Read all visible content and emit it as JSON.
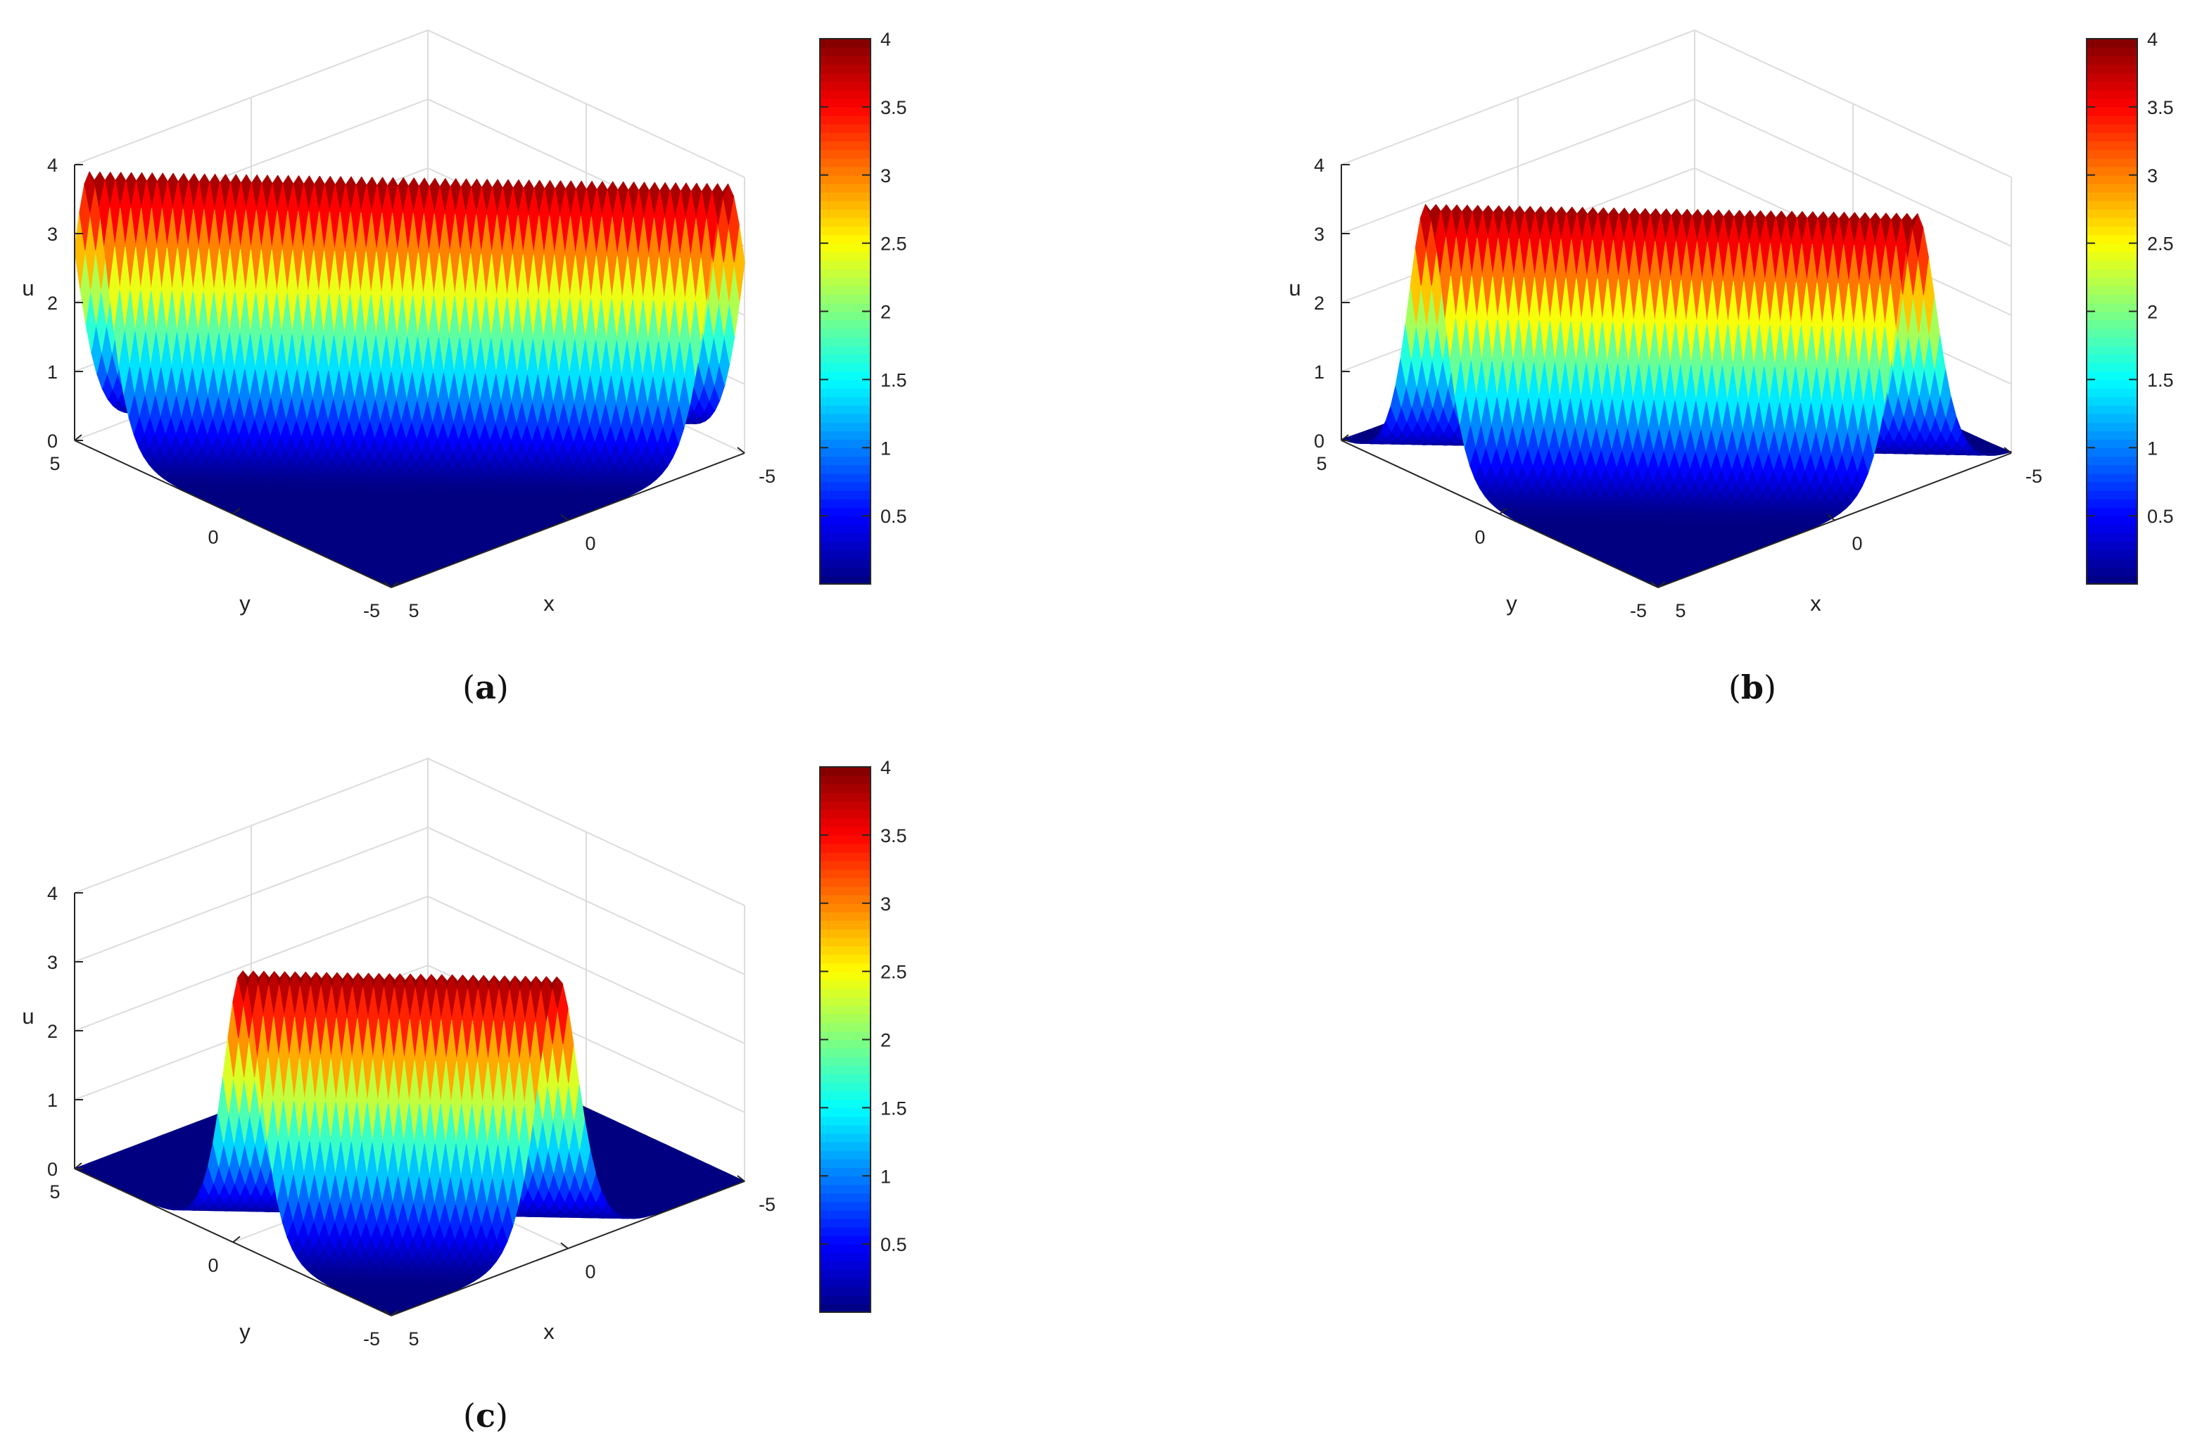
{
  "chart_data": [
    {
      "type": "surface",
      "panel_label": "a",
      "xlabel": "x",
      "ylabel": "y",
      "zlabel": "u",
      "xlim": [
        -5,
        5
      ],
      "ylim": [
        -5,
        5
      ],
      "zlim": [
        0,
        4
      ],
      "x_ticks": [
        "-5",
        "0",
        "5"
      ],
      "y_ticks": [
        "5",
        "0",
        "-5"
      ],
      "z_ticks": [
        "0",
        "1",
        "2",
        "3",
        "4"
      ],
      "colorbar": {
        "range": [
          0,
          4
        ],
        "ticks": [
          "0.5",
          "1",
          "1.5",
          "2",
          "2.5",
          "3",
          "3.5",
          "4"
        ],
        "colormap": "jet"
      },
      "surface": {
        "peak": 4.0,
        "line": "x + y = c",
        "offset": 0.5
      }
    },
    {
      "type": "surface",
      "panel_label": "b",
      "xlabel": "x",
      "ylabel": "y",
      "zlabel": "u",
      "xlim": [
        -5,
        5
      ],
      "ylim": [
        -5,
        5
      ],
      "zlim": [
        0,
        4
      ],
      "x_ticks": [
        "-5",
        "0",
        "5"
      ],
      "y_ticks": [
        "5",
        "0",
        "-5"
      ],
      "z_ticks": [
        "0",
        "1",
        "2",
        "3",
        "4"
      ],
      "colorbar": {
        "range": [
          0,
          4
        ],
        "ticks": [
          "0.5",
          "1",
          "1.5",
          "2",
          "2.5",
          "3",
          "3.5",
          "4"
        ],
        "colormap": "jet"
      },
      "surface": {
        "peak": 4.0,
        "line": "x + y = c",
        "offset": 2.7
      }
    },
    {
      "type": "surface",
      "panel_label": "c",
      "xlabel": "x",
      "ylabel": "y",
      "zlabel": "u",
      "xlim": [
        -5,
        5
      ],
      "ylim": [
        -5,
        5
      ],
      "zlim": [
        0,
        4
      ],
      "x_ticks": [
        "-5",
        "0",
        "5"
      ],
      "y_ticks": [
        "5",
        "0",
        "-5"
      ],
      "z_ticks": [
        "0",
        "1",
        "2",
        "3",
        "4"
      ],
      "colorbar": {
        "range": [
          0,
          4
        ],
        "ticks": [
          "0.5",
          "1",
          "1.5",
          "2",
          "2.5",
          "3",
          "3.5",
          "4"
        ],
        "colormap": "jet"
      },
      "surface": {
        "peak": 4.0,
        "line": "x + y = c",
        "offset": 5.3
      }
    }
  ]
}
